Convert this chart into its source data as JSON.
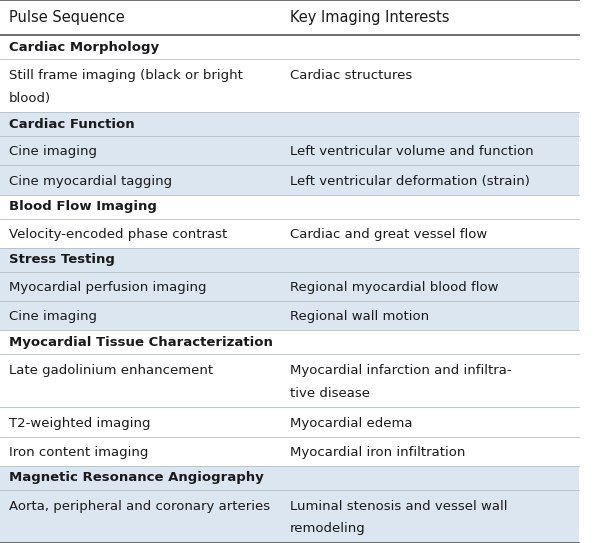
{
  "col1_header": "Pulse Sequence",
  "col2_header": "Key Imaging Interests",
  "rows": [
    {
      "type": "section",
      "col1": "Cardiac Morphology",
      "col2": "",
      "shaded": false
    },
    {
      "type": "data",
      "col1": "Still frame imaging (black or bright\nblood)",
      "col2": "Cardiac structures",
      "shaded": false
    },
    {
      "type": "section",
      "col1": "Cardiac Function",
      "col2": "",
      "shaded": true
    },
    {
      "type": "data",
      "col1": "Cine imaging",
      "col2": "Left ventricular volume and function",
      "shaded": true
    },
    {
      "type": "data",
      "col1": "Cine myocardial tagging",
      "col2": "Left ventricular deformation (strain)",
      "shaded": true
    },
    {
      "type": "section",
      "col1": "Blood Flow Imaging",
      "col2": "",
      "shaded": false
    },
    {
      "type": "data",
      "col1": "Velocity-encoded phase contrast",
      "col2": "Cardiac and great vessel flow",
      "shaded": false
    },
    {
      "type": "section",
      "col1": "Stress Testing",
      "col2": "",
      "shaded": true
    },
    {
      "type": "data",
      "col1": "Myocardial perfusion imaging",
      "col2": "Regional myocardial blood flow",
      "shaded": true
    },
    {
      "type": "data",
      "col1": "Cine imaging",
      "col2": "Regional wall motion",
      "shaded": true
    },
    {
      "type": "section",
      "col1": "Myocardial Tissue Characterization",
      "col2": "",
      "shaded": false
    },
    {
      "type": "data",
      "col1": "Late gadolinium enhancement",
      "col2": "Myocardial infarction and infiltra-\ntive disease",
      "shaded": false
    },
    {
      "type": "data",
      "col1": "T2-weighted imaging",
      "col2": "Myocardial edema",
      "shaded": false
    },
    {
      "type": "data",
      "col1": "Iron content imaging",
      "col2": "Myocardial iron infiltration",
      "shaded": false
    },
    {
      "type": "section",
      "col1": "Magnetic Resonance Angiography",
      "col2": "",
      "shaded": true
    },
    {
      "type": "data",
      "col1": "Aorta, peripheral and coronary arteries",
      "col2": "Luminal stenosis and vessel wall\nremodeling",
      "shaded": true
    }
  ],
  "background_color": "#ffffff",
  "shaded_color": "#dce6f1",
  "text_color": "#1a1a1a",
  "header_line_color": "#555555",
  "divider_color": "#b0bec5",
  "col_split": 0.48,
  "font_size": 9.5,
  "header_font_size": 10.5
}
